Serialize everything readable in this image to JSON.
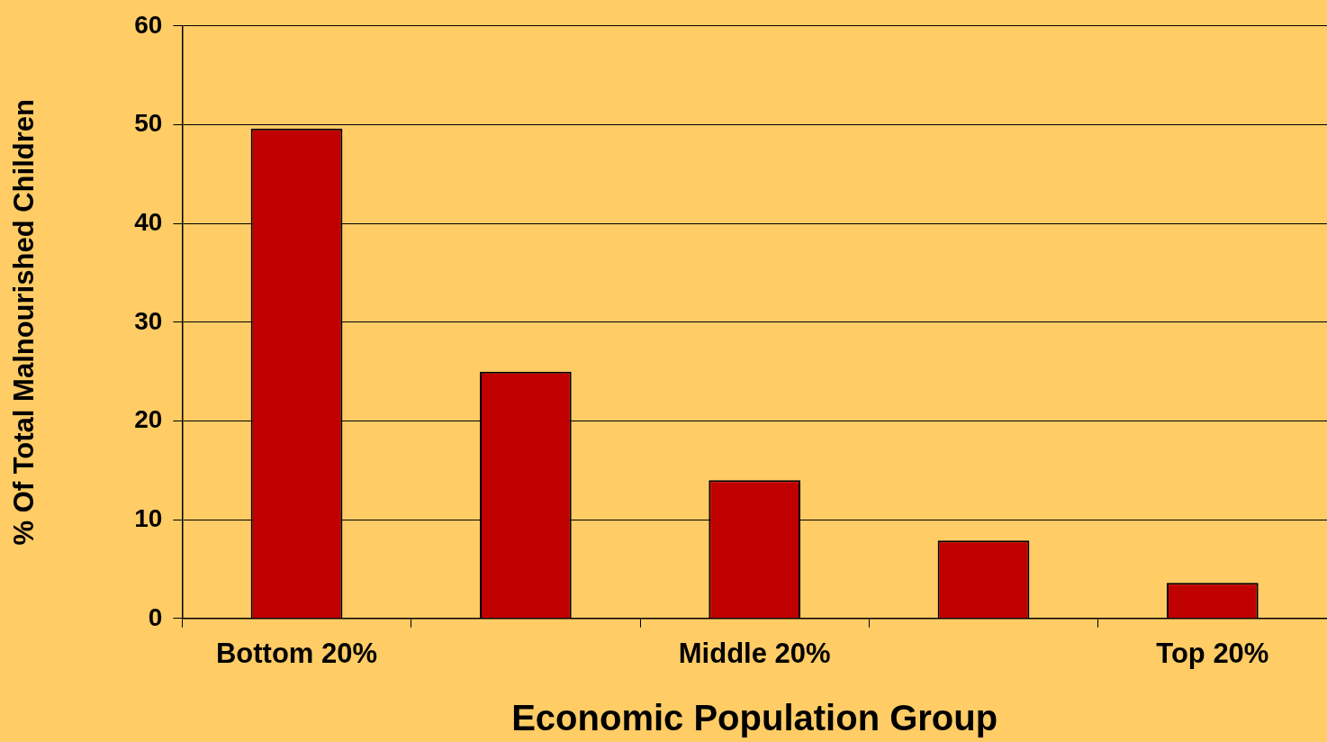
{
  "chart_data": {
    "type": "bar",
    "xlabel": "Economic Population Group",
    "ylabel": "% Of Total Malnourished Children",
    "categories": [
      "Bottom 20%",
      null,
      "Middle 20%",
      null,
      "Top 20%"
    ],
    "values": [
      49.6,
      25,
      14,
      7.9,
      3.6
    ],
    "color": "#c00000",
    "ylim": [
      0,
      60
    ],
    "yticks": [
      0,
      10,
      20,
      30,
      40,
      50,
      60
    ],
    "grid": "y",
    "legend": false
  }
}
